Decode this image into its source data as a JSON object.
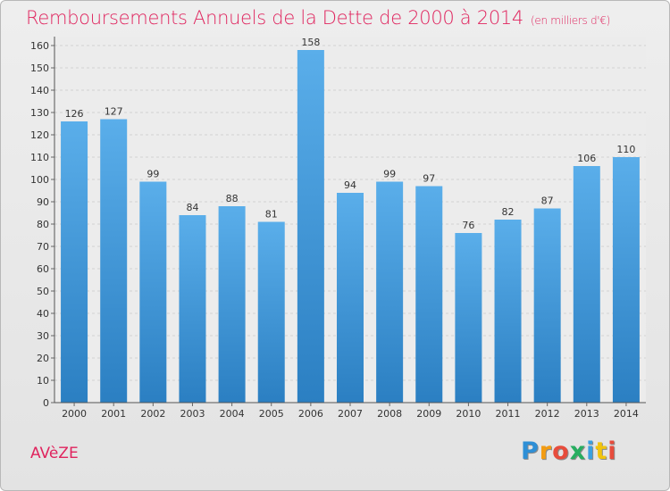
{
  "header": {
    "title": "Remboursements Annuels de la Dette de 2000 à 2014",
    "subtitle": "(en milliers d'€)"
  },
  "footer": {
    "commune": "AVèZE",
    "logo_letters": [
      "P",
      "r",
      "o",
      "x",
      "i",
      "t",
      "i"
    ],
    "logo_colors": [
      "#2e8fd6",
      "#f39c12",
      "#e74c3c",
      "#27ae60",
      "#3aa0e0",
      "#f1c40f",
      "#e74c3c"
    ]
  },
  "chart_data": {
    "type": "bar",
    "title": "Remboursements Annuels de la Dette de 2000 à 2014",
    "subtitle": "(en milliers d'€)",
    "xlabel": "",
    "ylabel": "",
    "categories": [
      "2000",
      "2001",
      "2002",
      "2003",
      "2004",
      "2005",
      "2006",
      "2007",
      "2008",
      "2009",
      "2010",
      "2011",
      "2012",
      "2013",
      "2014"
    ],
    "values": [
      126,
      127,
      99,
      84,
      88,
      81,
      158,
      94,
      99,
      97,
      76,
      82,
      87,
      106,
      110
    ],
    "ylim": [
      0,
      160
    ],
    "yticks": [
      0,
      10,
      20,
      30,
      40,
      50,
      60,
      70,
      80,
      90,
      100,
      110,
      120,
      130,
      140,
      150,
      160
    ],
    "grid": true,
    "bar_color_top": "#5aaeea",
    "bar_color_bottom": "#2b7fc2"
  }
}
